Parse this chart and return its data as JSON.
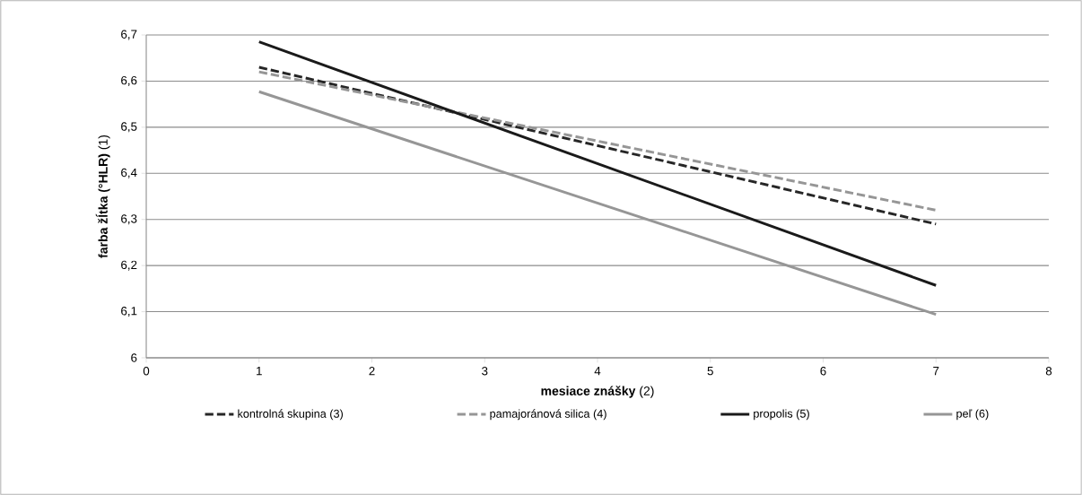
{
  "chart_data": {
    "type": "line",
    "xlabel": "**mesiace znášky** (2)",
    "ylabel": "**farba žĺtka (°HLR)** (1)",
    "xlim": [
      0,
      8
    ],
    "xticks": [
      0,
      1,
      2,
      3,
      4,
      5,
      6,
      7,
      8
    ],
    "ylim": [
      6,
      6.7
    ],
    "yticks": [
      6,
      {
        "value": 6.1,
        "label": "6,1"
      },
      {
        "value": 6.2,
        "label": "6,2"
      },
      {
        "value": 6.3,
        "label": "6,3"
      },
      {
        "value": 6.4,
        "label": "6,4"
      },
      {
        "value": 6.5,
        "label": "6,5"
      },
      {
        "value": 6.6,
        "label": "6,6"
      },
      {
        "value": 6.7,
        "label": "6,7"
      }
    ],
    "x": [
      1,
      7
    ],
    "grid": "y",
    "legend": "bottom",
    "marker": "none",
    "series": [
      {
        "name": "kontrolná skupina (3)",
        "color": "#262626",
        "line_style": "dashed",
        "values": [
          6.63,
          6.29
        ]
      },
      {
        "name": "pamajoránová silica (4)",
        "color": "#969696",
        "line_style": "dashed",
        "values": [
          6.62,
          6.32
        ]
      },
      {
        "name": "propolis (5)",
        "color": "#1a1a1a",
        "line_style": "solid",
        "values": [
          6.685,
          6.157
        ]
      },
      {
        "name": "peľ (6)",
        "color": "#969696",
        "line_style": "solid",
        "values": [
          6.577,
          6.094
        ]
      }
    ]
  }
}
